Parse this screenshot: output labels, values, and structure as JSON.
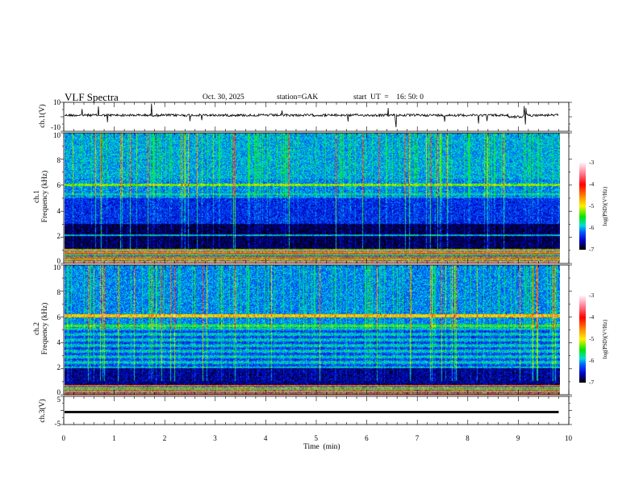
{
  "header": {
    "title": "VLF Spectra",
    "date": "Oct. 30, 2025",
    "station": "station=GAK",
    "start": "start  UT  =    16: 50: 0"
  },
  "chart_data": [
    {
      "type": "line",
      "name": "ch1-waveform",
      "ylabel": "ch.1(V)",
      "yticks": [
        "10",
        "-10"
      ],
      "ylim": [
        -10,
        10
      ],
      "xlim": [
        0,
        10
      ],
      "approx_level": 0,
      "data_end_min": 9.8
    },
    {
      "type": "heatmap",
      "name": "ch1-spectrogram",
      "ylabel": "ch.1\nFrequency (kHz)",
      "ylabel_lines": [
        "ch.1",
        "Frequency  (kHz)"
      ],
      "yticks": [
        "10",
        "8",
        "6",
        "4",
        "2",
        "0"
      ],
      "ylim": [
        0,
        10
      ],
      "xlim": [
        0,
        10
      ],
      "colorbar": {
        "label": "log(PSD)(V²/Hz)",
        "ticks": [
          "-3",
          "-4",
          "-5",
          "-6",
          "-7"
        ],
        "range": [
          -7,
          -3
        ]
      },
      "features": {
        "bright_band_khz": [
          0,
          1
        ],
        "dark_band_khz": [
          1,
          3
        ],
        "line_khz": 6,
        "sferics": "vertical broadband streaks"
      }
    },
    {
      "type": "heatmap",
      "name": "ch2-spectrogram",
      "ylabel_lines": [
        "ch.2",
        "Frequency  (kHz)"
      ],
      "yticks": [
        "10",
        "8",
        "6",
        "4",
        "2",
        "0"
      ],
      "ylim": [
        0,
        10
      ],
      "xlim": [
        0,
        10
      ],
      "colorbar": {
        "label": "log(PSD)(V²/Hz)",
        "ticks": [
          "-3",
          "-4",
          "-5",
          "-6",
          "-7"
        ],
        "range": [
          -7,
          -3
        ]
      },
      "features": {
        "line_khz": 6.1,
        "dark_band_khz": [
          1,
          2
        ],
        "sferics": "vertical broadband streaks"
      }
    },
    {
      "type": "line",
      "name": "ch3-waveform",
      "ylabel": "ch.3(V)",
      "yticks": [
        "5",
        "-5"
      ],
      "ylim": [
        -5,
        5
      ],
      "xlim": [
        0,
        10
      ],
      "approx_level": -1,
      "data_end_min": 9.8
    }
  ],
  "xaxis": {
    "label": "Time  (min)",
    "ticks": [
      "0",
      "1",
      "2",
      "3",
      "4",
      "5",
      "6",
      "7",
      "8",
      "9",
      "10"
    ]
  }
}
